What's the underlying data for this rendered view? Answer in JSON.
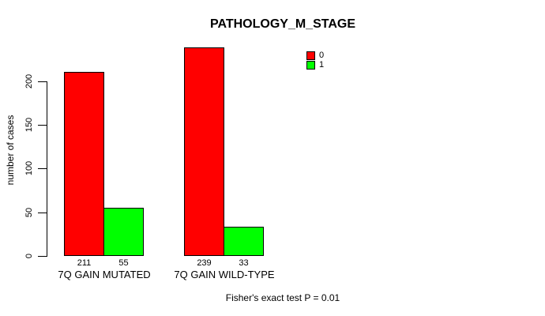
{
  "chart_data": {
    "type": "bar",
    "title": "PATHOLOGY_M_STAGE",
    "ylabel": "number of cases",
    "xlabel": "",
    "categories": [
      "7Q GAIN MUTATED",
      "7Q GAIN WILD-TYPE"
    ],
    "series": [
      {
        "name": "0",
        "color": "#ff0000",
        "values": [
          211,
          239
        ]
      },
      {
        "name": "1",
        "color": "#00ff00",
        "values": [
          55,
          33
        ]
      }
    ],
    "bar_value_labels": [
      [
        211,
        55
      ],
      [
        239,
        33
      ]
    ],
    "yticks": [
      0,
      50,
      100,
      150,
      200
    ],
    "ylim": [
      0,
      240
    ],
    "grid": false,
    "legend": {
      "position": "top-right",
      "entries": [
        "0",
        "1"
      ]
    },
    "annotation": "Fisher's exact test P = 0.01",
    "background_color": "#ffffff",
    "axis_color": "#000000"
  }
}
